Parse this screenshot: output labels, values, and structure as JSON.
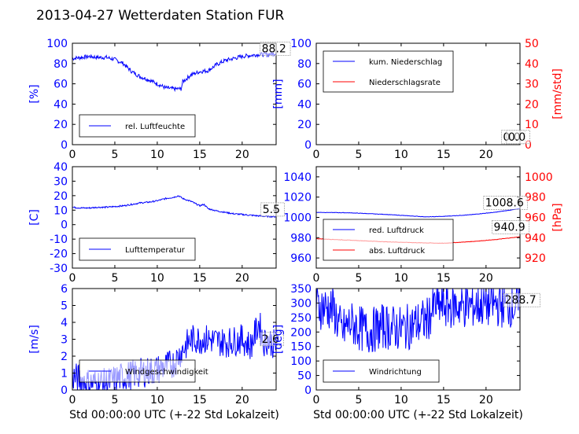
{
  "title": "2013-04-27 Wetterdaten Station FUR",
  "colors": {
    "left": "#0000ff",
    "right": "#ff0000",
    "axis": "#000000"
  },
  "chart_data": [
    {
      "id": "p1",
      "type": "line",
      "ylabel": "[%]",
      "xlabel": "",
      "xlim": [
        0,
        24
      ],
      "xticks": [
        0,
        5,
        10,
        15,
        20
      ],
      "ylim": [
        0,
        100
      ],
      "yticks": [
        0,
        20,
        40,
        60,
        80,
        100
      ],
      "series": [
        {
          "name": "rel. Luftfeuchte",
          "color": "#0000ff",
          "noise": 2,
          "x": [
            0,
            1,
            2,
            3,
            4,
            5,
            6,
            7,
            8,
            9,
            10,
            11,
            12,
            12.8,
            13,
            14,
            15,
            16,
            17,
            18,
            19,
            20,
            21,
            22,
            23,
            24
          ],
          "y": [
            85,
            86,
            87,
            86,
            86,
            84,
            80,
            72,
            67,
            64,
            60,
            56,
            55,
            55,
            62,
            69,
            72,
            73,
            79,
            83,
            85,
            87,
            88,
            89,
            89,
            90
          ]
        }
      ],
      "legend": {
        "pos": "lower-left",
        "entries": [
          "rel. Luftfeuchte"
        ]
      },
      "annotations": [
        {
          "text": "88.2",
          "x": 22.3,
          "y": 91
        }
      ]
    },
    {
      "id": "p2",
      "type": "line",
      "ylabel": "[mm]",
      "ylabel_right": "[mm/std]",
      "xlabel": "",
      "xlim": [
        0,
        24
      ],
      "xticks": [
        0,
        5,
        10,
        15,
        20
      ],
      "ylim": [
        0,
        100
      ],
      "yticks": [
        0,
        20,
        40,
        60,
        80,
        100
      ],
      "ylim_right": [
        0,
        50
      ],
      "yticks_right": [
        0,
        10,
        20,
        30,
        40,
        50
      ],
      "series": [
        {
          "name": "kum. Niederschlag",
          "color": "#0000ff",
          "noise": 0,
          "x": [
            0,
            24
          ],
          "y": [
            0,
            0
          ]
        },
        {
          "name": "Niederschlagsrate",
          "color": "#ff0000",
          "noise": 0,
          "axis": "right",
          "x": [
            0,
            24
          ],
          "y": [
            0,
            0
          ]
        }
      ],
      "legend": {
        "pos": "upper-left",
        "entries": [
          "kum. Niederschlag",
          "Niederschlagsrate"
        ]
      },
      "annotations": [
        {
          "text": "0.0",
          "x": 22.0,
          "y": 4
        },
        {
          "text": "0.0",
          "x": 22.6,
          "y": 4
        }
      ]
    },
    {
      "id": "p3",
      "type": "line",
      "ylabel": "[C]",
      "xlabel": "",
      "xlim": [
        0,
        24
      ],
      "xticks": [
        0,
        5,
        10,
        15,
        20
      ],
      "ylim": [
        -30,
        40
      ],
      "yticks": [
        -30,
        -20,
        -10,
        0,
        10,
        20,
        30,
        40
      ],
      "series": [
        {
          "name": "Lufttemperatur",
          "color": "#0000ff",
          "noise": 0.5,
          "x": [
            0,
            1,
            2,
            3,
            4,
            5,
            6,
            7,
            8,
            9,
            10,
            11,
            12,
            12.5,
            13,
            14,
            15,
            15.5,
            16,
            17,
            18,
            19,
            20,
            21,
            22,
            23,
            24
          ],
          "y": [
            12,
            11.5,
            11.5,
            12,
            12,
            12.5,
            13,
            14,
            15,
            15.5,
            16.5,
            18,
            19,
            20,
            18,
            16,
            13,
            14,
            11,
            9.5,
            8.5,
            7.5,
            7,
            6.5,
            6,
            5.7,
            5.5
          ]
        }
      ],
      "legend": {
        "pos": "lower-left",
        "entries": [
          "Lufttemperatur"
        ]
      },
      "annotations": [
        {
          "text": "5.5",
          "x": 22.4,
          "y": 8
        }
      ]
    },
    {
      "id": "p4",
      "type": "line",
      "ylabel": "",
      "ylabel_right": "[hPa]",
      "xlabel": "",
      "xlim": [
        0,
        24
      ],
      "xticks": [
        0,
        5,
        10,
        15,
        20
      ],
      "ylim": [
        950,
        1050
      ],
      "yticks": [
        960,
        980,
        1000,
        1020,
        1040
      ],
      "ylim_right": [
        910,
        1010
      ],
      "yticks_right": [
        920,
        940,
        960,
        980,
        1000
      ],
      "series": [
        {
          "name": "red. Luftdruck",
          "color": "#0000ff",
          "noise": 0.2,
          "x": [
            0,
            4,
            8,
            12,
            13,
            15,
            18,
            21,
            24
          ],
          "y": [
            1005,
            1004.5,
            1003,
            1001,
            1000.5,
            1001,
            1002.5,
            1005,
            1008.6
          ]
        },
        {
          "name": "abs. Luftdruck",
          "color": "#ff0000",
          "noise": 0.2,
          "axis": "right",
          "x": [
            0,
            4,
            8,
            12,
            15,
            18,
            21,
            24
          ],
          "y": [
            939,
            937.5,
            936,
            935,
            934.5,
            936,
            938,
            940.9
          ]
        }
      ],
      "legend": {
        "pos": "lower-left",
        "entries": [
          "red. Luftdruck",
          "abs. Luftdruck"
        ]
      },
      "annotations": [
        {
          "text": "1008.6",
          "x": 19.9,
          "y": 1011
        },
        {
          "text": "940.9",
          "x": 20.9,
          "y": 987
        }
      ]
    },
    {
      "id": "p5",
      "type": "line",
      "ylabel": "[m/s]",
      "xlabel": "Std 00:00:00 UTC (+-22 Std Lokalzeit)",
      "xlim": [
        0,
        24
      ],
      "xticks": [
        0,
        5,
        10,
        15,
        20
      ],
      "ylim": [
        0,
        6
      ],
      "yticks": [
        0,
        1,
        2,
        3,
        4,
        5,
        6
      ],
      "series": [
        {
          "name": "Windgeschwindigkeit",
          "color": "#0000ff",
          "noise": 0.9,
          "x": [
            0,
            2,
            4,
            6,
            8,
            10,
            12,
            13,
            14,
            16,
            18,
            20,
            21,
            22,
            22.5,
            23,
            24
          ],
          "y": [
            0.8,
            0.4,
            0.4,
            0.8,
            1,
            1.2,
            1.6,
            2.4,
            3,
            3,
            2.8,
            3,
            2.6,
            4,
            2.8,
            3,
            2.6
          ]
        }
      ],
      "legend": {
        "pos": "lower-left",
        "entries": [
          "Windgeschwindigkeit"
        ]
      },
      "annotations": [
        {
          "text": "2.6",
          "x": 22.3,
          "y": 2.8
        }
      ]
    },
    {
      "id": "p6",
      "type": "line",
      "ylabel": "[deg]",
      "xlabel": "Std 00:00:00 UTC (+-22 Std Lokalzeit)",
      "xlim": [
        0,
        24
      ],
      "xticks": [
        0,
        5,
        10,
        15,
        20
      ],
      "ylim": [
        0,
        350
      ],
      "yticks": [
        0,
        50,
        100,
        150,
        200,
        250,
        300,
        350
      ],
      "series": [
        {
          "name": "Windrichtung",
          "color": "#0000ff",
          "noise": 80,
          "x": [
            0,
            2,
            3,
            4,
            6,
            8,
            10,
            12,
            13,
            14,
            16,
            18,
            20,
            22,
            24
          ],
          "y": [
            290,
            280,
            200,
            230,
            200,
            220,
            210,
            230,
            240,
            290,
            290,
            290,
            295,
            295,
            290
          ]
        }
      ],
      "legend": {
        "pos": "lower-left",
        "entries": [
          "Windrichtung"
        ]
      },
      "annotations": [
        {
          "text": "288.7",
          "x": 22.2,
          "y": 298
        }
      ]
    }
  ]
}
